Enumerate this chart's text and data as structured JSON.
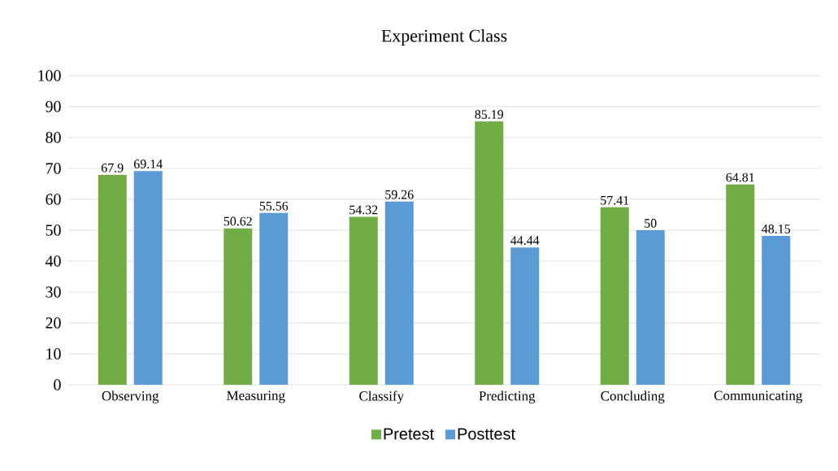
{
  "chart_data": {
    "type": "bar",
    "title": "Experiment Class",
    "categories": [
      "Observing",
      "Measuring",
      "Classify",
      "Predicting",
      "Concluding",
      "Communicating"
    ],
    "series": [
      {
        "name": "Pretest",
        "color": "#70ad47",
        "values": [
          67.9,
          50.62,
          54.32,
          85.19,
          57.41,
          64.81
        ]
      },
      {
        "name": "Posttest",
        "color": "#5b9bd5",
        "values": [
          69.14,
          55.56,
          59.26,
          44.44,
          50,
          48.15
        ]
      }
    ],
    "ylim": [
      0,
      100
    ],
    "yticks": [
      0,
      10,
      20,
      30,
      40,
      50,
      60,
      70,
      80,
      90,
      100
    ],
    "grid": "y",
    "legend": "bottom",
    "data_labels": true
  }
}
